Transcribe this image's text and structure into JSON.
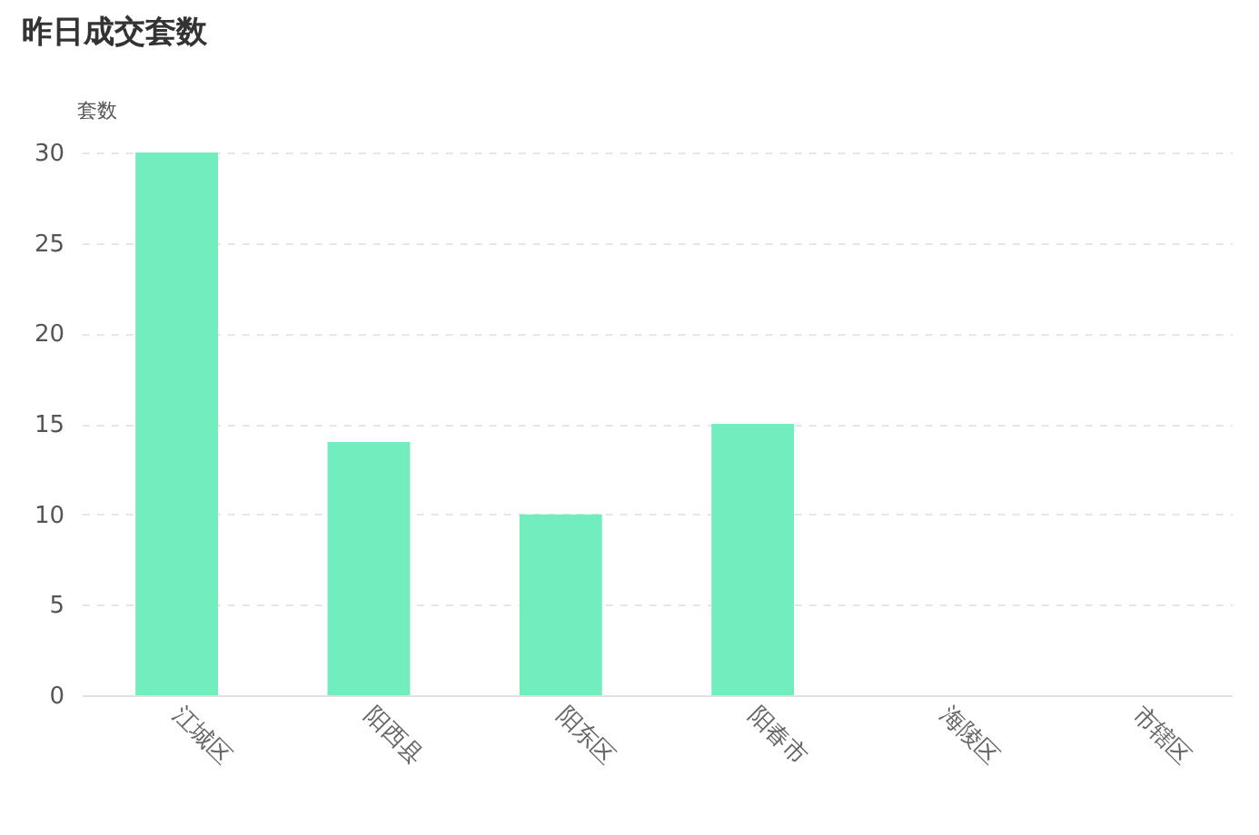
{
  "chart_data": {
    "type": "bar",
    "title": "昨日成交套数",
    "ylabel": "套数",
    "categories": [
      "江城区",
      "阳西县",
      "阳东区",
      "阳春市",
      "海陵区",
      "市辖区"
    ],
    "values": [
      30,
      14,
      10,
      15,
      0,
      0
    ],
    "color": "#72edbe",
    "ylim": [
      0,
      30
    ],
    "yticks": [
      0,
      5,
      10,
      15,
      20,
      25,
      30
    ],
    "grid": "y"
  }
}
